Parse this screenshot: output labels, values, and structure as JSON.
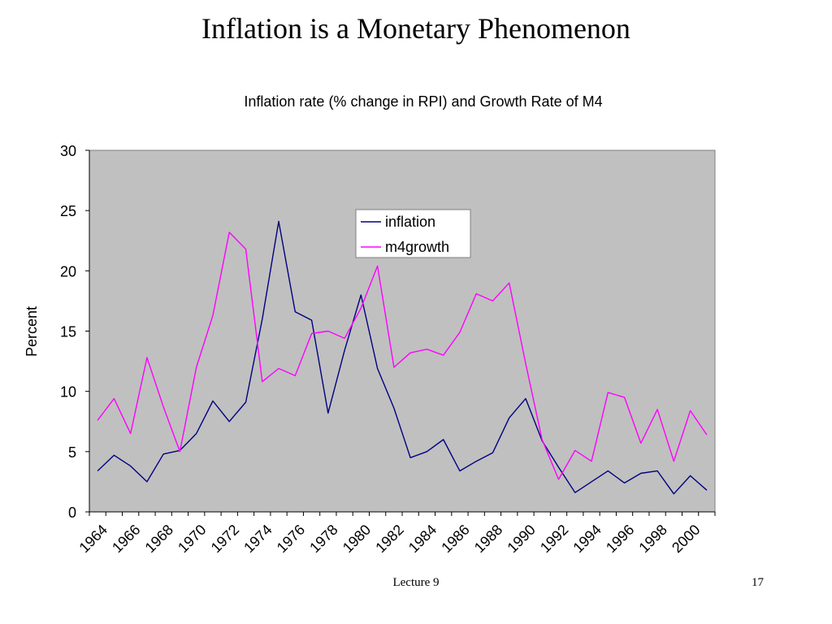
{
  "slide": {
    "title": "Inflation is a Monetary Phenomenon",
    "footer_label": "Lecture 9",
    "page_number": "17"
  },
  "chart_data": {
    "type": "line",
    "title": "Inflation rate (% change in RPI) and Growth Rate of M4",
    "xlabel": "",
    "ylabel": "Percent",
    "x": [
      1964,
      1965,
      1966,
      1967,
      1968,
      1969,
      1970,
      1971,
      1972,
      1973,
      1974,
      1975,
      1976,
      1977,
      1978,
      1979,
      1980,
      1981,
      1982,
      1983,
      1984,
      1985,
      1986,
      1987,
      1988,
      1989,
      1990,
      1991,
      1992,
      1993,
      1994,
      1995,
      1996,
      1997,
      1998,
      1999,
      2000,
      2001
    ],
    "x_tick_labels": [
      "1964",
      "1966",
      "1968",
      "1970",
      "1972",
      "1974",
      "1976",
      "1978",
      "1980",
      "1982",
      "1984",
      "1986",
      "1988",
      "1990",
      "1992",
      "1994",
      "1996",
      "1998",
      "2000"
    ],
    "ylim": [
      0,
      30
    ],
    "y_ticks": [
      0,
      5,
      10,
      15,
      20,
      25,
      30
    ],
    "grid": false,
    "plot_background": "#c0c0c0",
    "legend_position": "top-center",
    "series": [
      {
        "name": "inflation",
        "color": "#000080",
        "values": [
          3.4,
          4.7,
          3.8,
          2.5,
          4.8,
          5.1,
          6.5,
          9.2,
          7.5,
          9.1,
          16.0,
          24.1,
          16.6,
          15.9,
          8.2,
          13.4,
          18.0,
          11.9,
          8.6,
          4.5,
          5.0,
          6.0,
          3.4,
          4.2,
          4.9,
          7.8,
          9.4,
          5.9,
          3.7,
          1.6,
          2.5,
          3.4,
          2.4,
          3.2,
          3.4,
          1.5,
          3.0,
          1.8
        ]
      },
      {
        "name": "m4growth",
        "color": "#ff00ff",
        "values": [
          7.6,
          9.4,
          6.5,
          12.8,
          8.7,
          5.0,
          12.0,
          16.3,
          23.2,
          21.8,
          10.8,
          11.9,
          11.3,
          14.8,
          15.0,
          14.4,
          16.9,
          20.4,
          12.0,
          13.2,
          13.5,
          13.0,
          14.9,
          18.1,
          17.5,
          19.0,
          12.3,
          6.0,
          2.7,
          5.1,
          4.2,
          9.9,
          9.5,
          5.7,
          8.5,
          4.2,
          8.4,
          6.4
        ]
      }
    ]
  }
}
